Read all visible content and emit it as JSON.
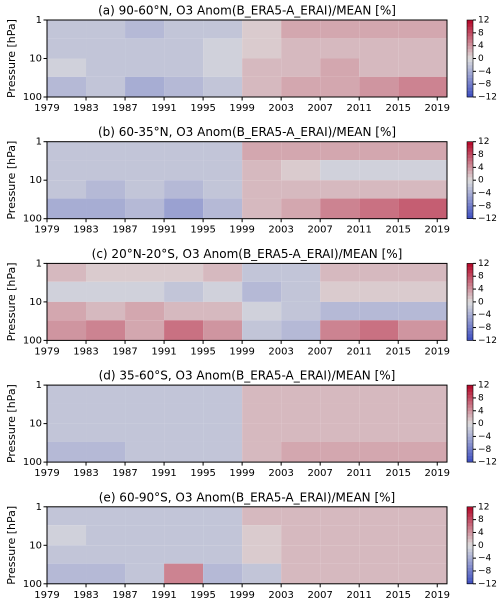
{
  "chart_data": [
    {
      "type": "heatmap",
      "title": "(a) 90-60°N, O3 Anom(B_ERA5-A_ERAI)/MEAN [%]",
      "ylabel": "Pressure [hPa]",
      "x_edges": [
        1979,
        1983,
        1987,
        1991,
        1995,
        1999,
        2003,
        2007,
        2011,
        2015,
        2020
      ],
      "y_edges": [
        1,
        3,
        10,
        30,
        100
      ],
      "z": [
        [
          -2,
          -2,
          -3,
          -2,
          -2,
          1,
          3,
          3,
          3,
          3
        ],
        [
          -2,
          -2,
          -2,
          -2,
          -1,
          1,
          2,
          2,
          2,
          2
        ],
        [
          -1,
          -2,
          -2,
          -2,
          -1,
          2,
          2,
          3,
          2,
          2
        ],
        [
          -3,
          -2,
          -4,
          -3,
          -2,
          2,
          3,
          3,
          4,
          5
        ]
      ],
      "xlim": [
        1979,
        2020
      ],
      "xticks": [
        1979,
        1983,
        1987,
        1991,
        1995,
        1999,
        2003,
        2007,
        2011,
        2015,
        2019
      ],
      "ylim": [
        100,
        1
      ],
      "yticks": [
        1,
        10,
        100
      ],
      "log_y": true,
      "clim": [
        -12,
        12
      ],
      "colormap": [
        "#3b4cc0",
        "#dddddd",
        "#b40426"
      ],
      "colorbar_ticks": [
        12,
        8,
        4,
        0,
        {
          "value": -4,
          "label": "−4"
        },
        {
          "value": -8,
          "label": "−8"
        },
        {
          "value": -12,
          "label": "−12"
        }
      ]
    },
    {
      "type": "heatmap",
      "title": "(b) 60-35°N, O3 Anom(B_ERA5-A_ERAI)/MEAN [%]",
      "ylabel": "Pressure [hPa]",
      "x_edges": [
        1979,
        1983,
        1987,
        1991,
        1995,
        1999,
        2003,
        2007,
        2011,
        2015,
        2020
      ],
      "y_edges": [
        1,
        3,
        10,
        30,
        100
      ],
      "z": [
        [
          -2,
          -2,
          -2,
          -2,
          -2,
          3,
          3,
          3,
          3,
          3
        ],
        [
          -2,
          -2,
          -2,
          -2,
          -2,
          2,
          1,
          -1,
          -1,
          -1
        ],
        [
          -2,
          -3,
          -2,
          -3,
          -2,
          2,
          2,
          2,
          2,
          2
        ],
        [
          -4,
          -4,
          -3,
          -5,
          -3,
          2,
          3,
          5,
          6,
          7
        ]
      ],
      "xlim": [
        1979,
        2020
      ],
      "xticks": [
        1979,
        1983,
        1987,
        1991,
        1995,
        1999,
        2003,
        2007,
        2011,
        2015,
        2019
      ],
      "ylim": [
        100,
        1
      ],
      "yticks": [
        1,
        10,
        100
      ],
      "log_y": true,
      "clim": [
        -12,
        12
      ],
      "colormap": [
        "#3b4cc0",
        "#dddddd",
        "#b40426"
      ],
      "colorbar_ticks": [
        12,
        8,
        4,
        0,
        {
          "value": -4,
          "label": "−4"
        },
        {
          "value": -8,
          "label": "−8"
        },
        {
          "value": -12,
          "label": "−12"
        }
      ]
    },
    {
      "type": "heatmap",
      "title": "(c) 20°N-20°S, O3 Anom(B_ERA5-A_ERAI)/MEAN [%]",
      "ylabel": "Pressure [hPa]",
      "x_edges": [
        1979,
        1983,
        1987,
        1991,
        1995,
        1999,
        2003,
        2007,
        2011,
        2015,
        2020
      ],
      "y_edges": [
        1,
        3,
        10,
        30,
        100
      ],
      "z": [
        [
          2,
          1,
          1,
          1,
          2,
          -2,
          -2,
          2,
          2,
          2
        ],
        [
          -1,
          -1,
          -1,
          -2,
          -1,
          -3,
          -2,
          1,
          1,
          1
        ],
        [
          3,
          2,
          3,
          2,
          2,
          -1,
          -2,
          -3,
          -3,
          -3
        ],
        [
          4,
          5,
          3,
          6,
          4,
          -2,
          -3,
          5,
          6,
          4
        ]
      ],
      "xlim": [
        1979,
        2020
      ],
      "xticks": [
        1979,
        1983,
        1987,
        1991,
        1995,
        1999,
        2003,
        2007,
        2011,
        2015,
        2019
      ],
      "ylim": [
        100,
        1
      ],
      "yticks": [
        1,
        10,
        100
      ],
      "log_y": true,
      "clim": [
        -12,
        12
      ],
      "colormap": [
        "#3b4cc0",
        "#dddddd",
        "#b40426"
      ],
      "colorbar_ticks": [
        12,
        8,
        4,
        0,
        {
          "value": -4,
          "label": "−4"
        },
        {
          "value": -8,
          "label": "−8"
        },
        {
          "value": -12,
          "label": "−12"
        }
      ]
    },
    {
      "type": "heatmap",
      "title": "(d) 35-60°S, O3 Anom(B_ERA5-A_ERAI)/MEAN [%]",
      "ylabel": "Pressure [hPa]",
      "x_edges": [
        1979,
        1983,
        1987,
        1991,
        1995,
        1999,
        2003,
        2007,
        2011,
        2015,
        2020
      ],
      "y_edges": [
        1,
        3,
        10,
        30,
        100
      ],
      "z": [
        [
          -2,
          -2,
          -2,
          -2,
          -2,
          2,
          2,
          2,
          2,
          2
        ],
        [
          -2,
          -2,
          -2,
          -2,
          -2,
          2,
          2,
          2,
          2,
          2
        ],
        [
          -2,
          -2,
          -2,
          -2,
          -2,
          2,
          2,
          2,
          2,
          2
        ],
        [
          -3,
          -3,
          -2,
          -2,
          -2,
          2,
          3,
          3,
          3,
          3
        ]
      ],
      "xlim": [
        1979,
        2020
      ],
      "xticks": [
        1979,
        1983,
        1987,
        1991,
        1995,
        1999,
        2003,
        2007,
        2011,
        2015,
        2019
      ],
      "ylim": [
        100,
        1
      ],
      "yticks": [
        1,
        10,
        100
      ],
      "log_y": true,
      "clim": [
        -12,
        12
      ],
      "colormap": [
        "#3b4cc0",
        "#dddddd",
        "#b40426"
      ],
      "colorbar_ticks": [
        12,
        8,
        4,
        0,
        {
          "value": -4,
          "label": "−4"
        },
        {
          "value": -8,
          "label": "−8"
        },
        {
          "value": -12,
          "label": "−12"
        }
      ]
    },
    {
      "type": "heatmap",
      "title": "(e) 60-90°S, O3 Anom(B_ERA5-A_ERAI)/MEAN [%]",
      "ylabel": "Pressure [hPa]",
      "x_edges": [
        1979,
        1983,
        1987,
        1991,
        1995,
        1999,
        2003,
        2007,
        2011,
        2015,
        2020
      ],
      "y_edges": [
        1,
        3,
        10,
        30,
        100
      ],
      "z": [
        [
          -2,
          -2,
          -2,
          -2,
          -2,
          2,
          2,
          2,
          2,
          2
        ],
        [
          -1,
          -2,
          -2,
          -2,
          -2,
          1,
          2,
          2,
          2,
          2
        ],
        [
          -2,
          -2,
          -2,
          -2,
          -2,
          1,
          2,
          2,
          2,
          2
        ],
        [
          -3,
          -3,
          -2,
          5,
          -3,
          -2,
          2,
          2,
          2,
          2
        ]
      ],
      "xlim": [
        1979,
        2020
      ],
      "xticks": [
        1979,
        1983,
        1987,
        1991,
        1995,
        1999,
        2003,
        2007,
        2011,
        2015,
        2019
      ],
      "ylim": [
        100,
        1
      ],
      "yticks": [
        1,
        10,
        100
      ],
      "log_y": true,
      "clim": [
        -12,
        12
      ],
      "colormap": [
        "#3b4cc0",
        "#dddddd",
        "#b40426"
      ],
      "colorbar_ticks": [
        12,
        8,
        4,
        0,
        {
          "value": -4,
          "label": "−4"
        },
        {
          "value": -8,
          "label": "−8"
        },
        {
          "value": -12,
          "label": "−12"
        }
      ]
    }
  ]
}
